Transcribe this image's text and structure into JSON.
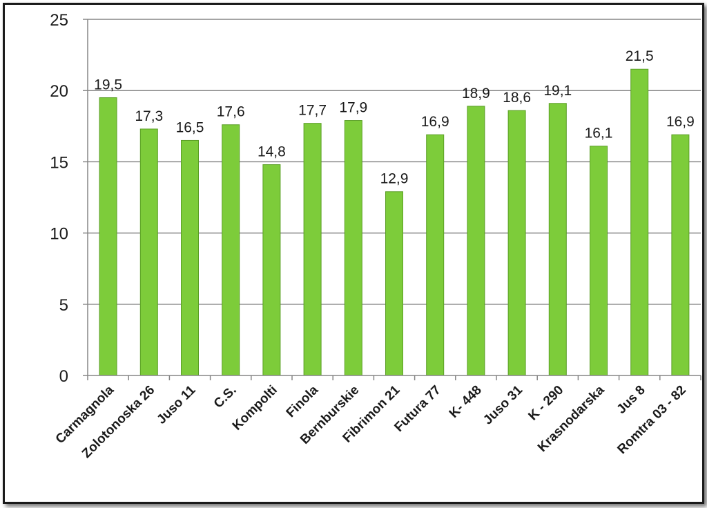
{
  "chart_data": {
    "type": "bar",
    "categories": [
      "Carmagnola",
      "Zolotonoska 26",
      "Juso 11",
      "C.S.",
      "Kompolti",
      "Finola",
      "Bernburskie",
      "Fibrimon 21",
      "Futura 77",
      "K- 448",
      "Juso 31",
      "K - 290",
      "Krasnodarska",
      "Jus 8",
      "Romtra 03 - 82"
    ],
    "values": [
      19.5,
      17.3,
      16.5,
      17.6,
      14.8,
      17.7,
      17.9,
      12.9,
      16.9,
      18.9,
      18.6,
      19.1,
      16.1,
      21.5,
      16.9
    ],
    "value_labels": [
      "19,5",
      "17,3",
      "16,5",
      "17,6",
      "14,8",
      "17,7",
      "17,9",
      "12,9",
      "16,9",
      "18,9",
      "18,6",
      "19,1",
      "16,1",
      "21,5",
      "16,9"
    ],
    "yticks": [
      "0",
      "5",
      "10",
      "15",
      "20",
      "25"
    ],
    "ylim": [
      0,
      25
    ],
    "title": "",
    "xlabel": "",
    "ylabel": "",
    "grid": true,
    "bar_color": "#7dcc3a",
    "bar_edge_color": "#5a9e25"
  }
}
